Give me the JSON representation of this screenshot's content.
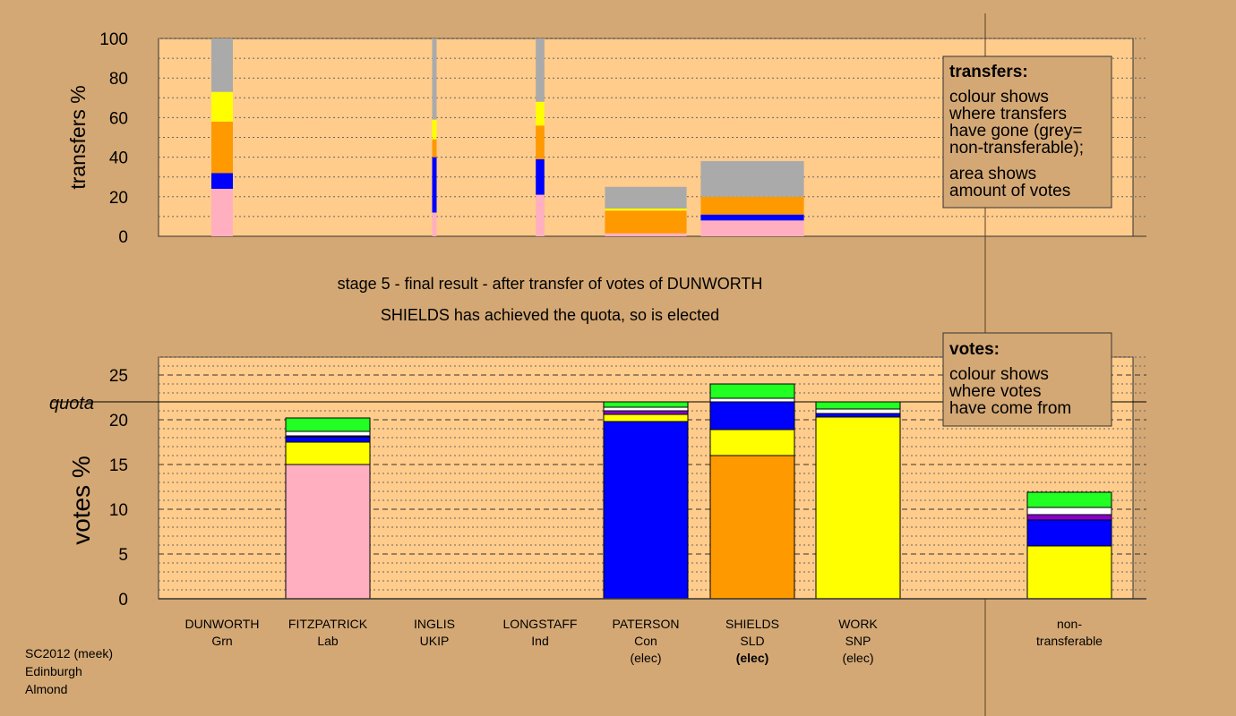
{
  "colors": {
    "background": "#d4a874",
    "plot_area": "#ffcc8c",
    "legend_box": "#d4a874",
    "pink": "#ffafc0",
    "blue": "#0000ff",
    "orange": "#ff9900",
    "yellow": "#ffff00",
    "white": "#ffffff",
    "purple": "#8800cc",
    "green": "#22ff22",
    "grey": "#aaaaaa"
  },
  "captions": {
    "stage": "stage 5 - final result - after transfer of votes of DUNWORTH",
    "elected": "SHIELDS has achieved the quota, so is elected"
  },
  "legends": {
    "transfers_title": "transfers:",
    "transfers_lines": [
      "colour shows",
      "where transfers",
      "have gone (grey=",
      "non-transferable);"
    ],
    "transfers_lines2": [
      "area shows",
      "amount of votes"
    ],
    "votes_title": "votes:",
    "votes_lines": [
      "colour shows",
      "where votes",
      "have come from"
    ]
  },
  "footer": {
    "line1": "SC2012 (meek)",
    "line2": "Edinburgh",
    "line3": "Almond"
  },
  "chart_data": [
    {
      "id": "transfers",
      "type": "bar",
      "ylabel": "transfers %",
      "ylim": [
        0,
        100
      ],
      "yticks": [
        0,
        20,
        40,
        60,
        80,
        100
      ],
      "bars": [
        {
          "candidate": "DUNWORTH",
          "width_share": 1.0,
          "segments": [
            {
              "color": "pink",
              "from": 0,
              "to": 24
            },
            {
              "color": "blue",
              "from": 24,
              "to": 32
            },
            {
              "color": "orange",
              "from": 32,
              "to": 58
            },
            {
              "color": "yellow",
              "from": 58,
              "to": 73
            },
            {
              "color": "grey",
              "from": 73,
              "to": 100
            }
          ]
        },
        {
          "candidate": "INGLIS",
          "width_share": 0.2,
          "segments": [
            {
              "color": "pink",
              "from": 0,
              "to": 12
            },
            {
              "color": "blue",
              "from": 12,
              "to": 40
            },
            {
              "color": "orange",
              "from": 40,
              "to": 49
            },
            {
              "color": "yellow",
              "from": 49,
              "to": 59
            },
            {
              "color": "grey",
              "from": 59,
              "to": 100
            }
          ]
        },
        {
          "candidate": "LONGSTAFF",
          "width_share": 0.4,
          "segments": [
            {
              "color": "pink",
              "from": 0,
              "to": 21
            },
            {
              "color": "blue",
              "from": 21,
              "to": 39
            },
            {
              "color": "orange",
              "from": 39,
              "to": 56
            },
            {
              "color": "yellow",
              "from": 56,
              "to": 68
            },
            {
              "color": "grey",
              "from": 68,
              "to": 100
            }
          ]
        },
        {
          "candidate": "PATERSON",
          "width_share": 3.8,
          "segments": [
            {
              "color": "pink",
              "from": 0,
              "to": 1.5
            },
            {
              "color": "orange",
              "from": 1.5,
              "to": 13
            },
            {
              "color": "yellow",
              "from": 13,
              "to": 14
            },
            {
              "color": "grey",
              "from": 14,
              "to": 25
            }
          ]
        },
        {
          "candidate": "SHIELDS",
          "width_share": 4.8,
          "segments": [
            {
              "color": "pink",
              "from": 0,
              "to": 8
            },
            {
              "color": "blue",
              "from": 8,
              "to": 11
            },
            {
              "color": "orange",
              "from": 11,
              "to": 20
            },
            {
              "color": "grey",
              "from": 20,
              "to": 38
            }
          ]
        }
      ]
    },
    {
      "id": "votes",
      "type": "bar",
      "ylabel": "votes %",
      "ylim": [
        0,
        27
      ],
      "yticks": [
        0,
        5,
        10,
        15,
        20,
        25
      ],
      "quota": 22,
      "quota_label": "quota",
      "categories": [
        {
          "name": "DUNWORTH",
          "party": "Grn",
          "status": ""
        },
        {
          "name": "FITZPATRICK",
          "party": "Lab",
          "status": ""
        },
        {
          "name": "INGLIS",
          "party": "UKIP",
          "status": ""
        },
        {
          "name": "LONGSTAFF",
          "party": "Ind",
          "status": ""
        },
        {
          "name": "PATERSON",
          "party": "Con",
          "status": "(elec)"
        },
        {
          "name": "SHIELDS",
          "party": "SLD",
          "status": "(elec)"
        },
        {
          "name": "WORK",
          "party": "SNP",
          "status": "(elec)"
        }
      ],
      "nontransferable_label": [
        "non-",
        "transferable"
      ],
      "stacks": [
        [],
        [
          {
            "color": "pink",
            "value": 15.0
          },
          {
            "color": "yellow",
            "value": 2.5
          },
          {
            "color": "blue",
            "value": 0.6
          },
          {
            "color": "purple",
            "value": 0.1
          },
          {
            "color": "white",
            "value": 0.5
          },
          {
            "color": "green",
            "value": 1.5
          }
        ],
        [],
        [],
        [
          {
            "color": "blue",
            "value": 19.8
          },
          {
            "color": "yellow",
            "value": 0.8
          },
          {
            "color": "purple",
            "value": 0.4
          },
          {
            "color": "white",
            "value": 0.4
          },
          {
            "color": "green",
            "value": 0.6
          }
        ],
        [
          {
            "color": "orange",
            "value": 16.0
          },
          {
            "color": "yellow",
            "value": 2.9
          },
          {
            "color": "blue",
            "value": 3.1
          },
          {
            "color": "white",
            "value": 0.4
          },
          {
            "color": "green",
            "value": 1.6
          }
        ],
        [
          {
            "color": "yellow",
            "value": 20.3
          },
          {
            "color": "blue",
            "value": 0.4
          },
          {
            "color": "white",
            "value": 0.5
          },
          {
            "color": "green",
            "value": 0.8
          }
        ],
        [
          {
            "color": "yellow",
            "value": 5.9
          },
          {
            "color": "blue",
            "value": 2.9
          },
          {
            "color": "purple",
            "value": 0.6
          },
          {
            "color": "white",
            "value": 0.8
          },
          {
            "color": "green",
            "value": 1.7
          }
        ]
      ]
    }
  ]
}
